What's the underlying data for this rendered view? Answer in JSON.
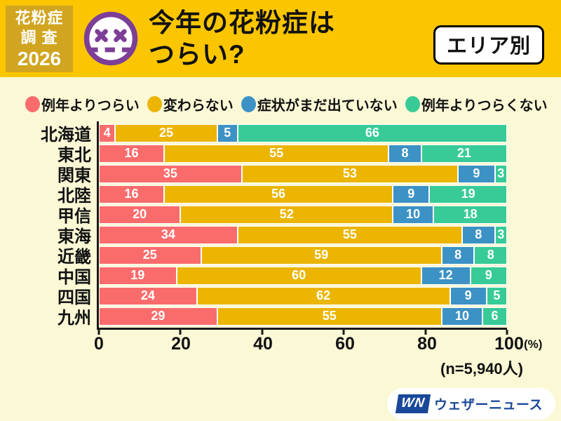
{
  "header": {
    "survey_box": {
      "lines": [
        "花粉症",
        "調 査",
        "2026"
      ]
    },
    "title_line1": "今年の花粉症は",
    "title_line2": "つらい?",
    "area_badge": "エリア別"
  },
  "legend": [
    {
      "label": "例年よりつらい",
      "color": "#FA6C6C"
    },
    {
      "label": "変わらない",
      "color": "#EBB502"
    },
    {
      "label": "症状がまだ出ていない",
      "color": "#3C92C5"
    },
    {
      "label": "例年よりつらくない",
      "color": "#38CB97"
    }
  ],
  "chart_data": {
    "type": "bar",
    "orientation": "horizontal",
    "stacked": true,
    "title": "今年の花粉症はつらい?(エリア別)",
    "categories": [
      "北海道",
      "東北",
      "関東",
      "北陸",
      "甲信",
      "東海",
      "近畿",
      "中国",
      "四国",
      "九州"
    ],
    "series": [
      {
        "name": "例年よりつらい",
        "color": "#FA6C6C",
        "values": [
          4,
          16,
          35,
          16,
          20,
          34,
          25,
          19,
          24,
          29
        ]
      },
      {
        "name": "変わらない",
        "color": "#EBB502",
        "values": [
          25,
          55,
          53,
          56,
          52,
          55,
          59,
          60,
          62,
          55
        ]
      },
      {
        "name": "症状がまだ出ていない",
        "color": "#3C92C5",
        "values": [
          5,
          8,
          9,
          9,
          10,
          8,
          8,
          12,
          9,
          10
        ]
      },
      {
        "name": "例年よりつらくない",
        "color": "#38CB97",
        "values": [
          66,
          21,
          3,
          19,
          18,
          3,
          8,
          9,
          5,
          6
        ]
      }
    ],
    "x_ticks": [
      0,
      20,
      40,
      60,
      80,
      100
    ],
    "x_unit": "(%)",
    "xlim": [
      0,
      100
    ],
    "legend_position": "top",
    "grid": false,
    "note": "(n=5,940人)"
  },
  "footer": {
    "logo_mark": "WN",
    "logo_text": "ウェザーニュース"
  },
  "colors": {
    "header_gold": "#FBC600",
    "survey_box_gold": "#D1A51F",
    "panel_bg": "#FBF8D6",
    "face_purple": "#7C3E97",
    "logo_blue": "#1A4899",
    "bar_value_text": "#FFFFFF",
    "axis_black": "#1A1A1A"
  }
}
